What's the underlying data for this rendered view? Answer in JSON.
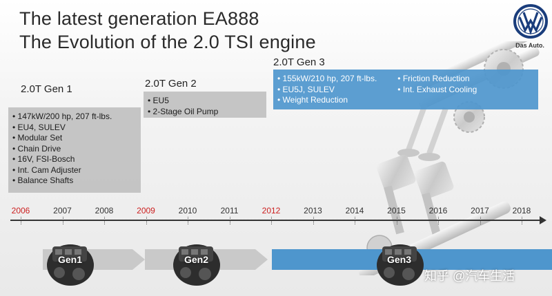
{
  "title": {
    "line1": "The latest generation EA888",
    "line2": "The Evolution of the 2.0 TSI engine"
  },
  "logo": {
    "tagline": "Das Auto.",
    "icon": "vw-logo"
  },
  "generations": [
    {
      "label": "2.0T Gen 1",
      "features": [
        "147kW/200 hp, 207 ft-lbs.",
        "EU4, SULEV",
        "Modular Set",
        "Chain Drive",
        "16V, FSI-Bosch",
        "Int. Cam Adjuster",
        "Balance Shafts"
      ],
      "arrow_label": "Gen1",
      "color": "#bfbfbf"
    },
    {
      "label": "2.0T Gen 2",
      "features": [
        "EU5",
        "2-Stage Oil Pump"
      ],
      "arrow_label": "Gen2",
      "color": "#bfbfbf"
    },
    {
      "label": "2.0T Gen 3",
      "features_col1": [
        "155kW/210 hp, 207 ft-lbs.",
        "EU5J, SULEV",
        "Weight Reduction"
      ],
      "features_col2": [
        "Friction Reduction",
        "Int. Exhaust Cooling"
      ],
      "arrow_label": "Gen3",
      "color": "#4e96cd"
    }
  ],
  "timeline": {
    "years": [
      "2006",
      "2007",
      "2008",
      "2009",
      "2010",
      "2011",
      "2012",
      "2013",
      "2014",
      "2015",
      "2016",
      "2017",
      "2018"
    ],
    "highlighted": [
      "2006",
      "2009",
      "2012"
    ],
    "highlight_color": "#cc1f1f"
  },
  "watermark": "知乎 @汽车生活"
}
